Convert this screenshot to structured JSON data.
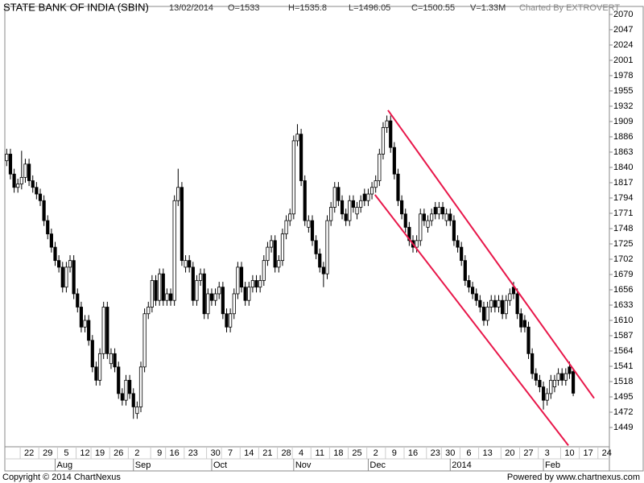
{
  "header": {
    "title": "STATE BANK OF INDIA (SBIN)",
    "date": "13/02/2014",
    "open": "O=1533",
    "high": "H=1535.8",
    "low": "L=1496.05",
    "close": "C=1500.55",
    "volume": "V=1.33M",
    "credit": "Charted By EXTROVERT"
  },
  "footer": {
    "copyright": "Copyright © 2014 ChartNexus",
    "powered": "Powered by www.chartnexus.com"
  },
  "chart_data": {
    "type": "candlestick",
    "x": [
      0,
      1,
      2,
      3,
      4,
      5,
      6,
      7,
      8,
      9,
      10,
      11,
      12,
      13,
      14,
      15,
      16,
      17,
      18,
      19,
      20,
      21,
      22,
      23,
      24,
      25,
      26,
      27,
      28,
      29,
      30,
      31,
      32,
      33,
      34,
      35,
      36,
      37,
      38,
      39,
      40,
      41,
      42,
      43,
      44,
      45,
      46,
      47,
      48,
      49,
      50,
      51,
      52,
      53,
      54,
      55,
      56,
      57,
      58,
      59,
      60,
      61,
      62,
      63,
      64,
      65,
      66,
      67,
      68,
      69,
      70,
      71,
      72,
      73,
      74,
      75,
      76,
      77,
      78,
      79,
      80,
      81,
      82,
      83,
      84,
      85,
      86,
      87,
      88,
      89,
      90,
      91,
      92,
      93,
      94,
      95,
      96,
      97,
      98,
      99,
      100,
      101,
      102,
      103,
      104,
      105,
      106,
      107,
      108,
      109,
      110,
      111,
      112,
      113,
      114,
      115,
      116,
      117,
      118,
      119,
      120,
      121,
      122,
      123,
      124,
      125,
      126,
      127,
      128,
      129,
      130,
      131,
      132,
      133,
      134,
      135,
      136,
      137,
      138,
      139,
      140,
      141,
      142,
      143,
      144,
      145,
      146,
      147,
      148,
      149,
      150,
      151,
      152
    ],
    "open": [
      1850,
      1860,
      1830,
      1810,
      1815,
      1825,
      1845,
      1820,
      1810,
      1800,
      1790,
      1760,
      1740,
      1720,
      1700,
      1690,
      1660,
      1690,
      1700,
      1650,
      1630,
      1600,
      1610,
      1580,
      1540,
      1520,
      1560,
      1630,
      1545,
      1560,
      1540,
      1500,
      1490,
      1520,
      1500,
      1470,
      1480,
      1540,
      1620,
      1630,
      1670,
      1640,
      1680,
      1640,
      1650,
      1640,
      1790,
      1810,
      1690,
      1700,
      1690,
      1640,
      1670,
      1680,
      1620,
      1650,
      1640,
      1650,
      1660,
      1620,
      1600,
      1620,
      1650,
      1690,
      1660,
      1640,
      1660,
      1670,
      1660,
      1670,
      1700,
      1720,
      1730,
      1690,
      1700,
      1740,
      1760,
      1770,
      1880,
      1890,
      1820,
      1750,
      1760,
      1730,
      1710,
      1690,
      1680,
      1760,
      1780,
      1810,
      1790,
      1770,
      1760,
      1790,
      1770,
      1780,
      1800,
      1790,
      1800,
      1810,
      1820,
      1860,
      1900,
      1910,
      1870,
      1830,
      1790,
      1770,
      1750,
      1730,
      1720,
      1730,
      1770,
      1750,
      1760,
      1780,
      1770,
      1780,
      1760,
      1770,
      1760,
      1730,
      1720,
      1700,
      1670,
      1660,
      1650,
      1640,
      1630,
      1610,
      1630,
      1640,
      1630,
      1640,
      1620,
      1640,
      1660,
      1650,
      1620,
      1610,
      1600,
      1560,
      1530,
      1520,
      1510,
      1490,
      1500,
      1510,
      1520,
      1530,
      1520,
      1540,
      1533
    ],
    "high": [
      1868,
      1868,
      1838,
      1823,
      1865,
      1853,
      1853,
      1828,
      1818,
      1808,
      1798,
      1768,
      1748,
      1728,
      1708,
      1698,
      1698,
      1708,
      1708,
      1658,
      1638,
      1618,
      1618,
      1588,
      1548,
      1568,
      1638,
      1638,
      1568,
      1568,
      1548,
      1508,
      1528,
      1528,
      1508,
      1488,
      1548,
      1628,
      1638,
      1678,
      1678,
      1688,
      1688,
      1658,
      1658,
      1798,
      1838,
      1818,
      1708,
      1708,
      1698,
      1678,
      1688,
      1688,
      1658,
      1658,
      1658,
      1668,
      1668,
      1628,
      1628,
      1658,
      1698,
      1698,
      1668,
      1668,
      1678,
      1678,
      1678,
      1708,
      1728,
      1738,
      1738,
      1708,
      1748,
      1768,
      1778,
      1888,
      1905,
      1898,
      1828,
      1768,
      1768,
      1738,
      1718,
      1698,
      1768,
      1788,
      1818,
      1818,
      1798,
      1778,
      1798,
      1798,
      1788,
      1798,
      1808,
      1808,
      1818,
      1828,
      1868,
      1908,
      1918,
      1918,
      1878,
      1838,
      1798,
      1778,
      1758,
      1738,
      1738,
      1778,
      1778,
      1768,
      1778,
      1788,
      1788,
      1788,
      1778,
      1778,
      1768,
      1738,
      1728,
      1708,
      1678,
      1668,
      1658,
      1648,
      1638,
      1638,
      1648,
      1648,
      1648,
      1648,
      1648,
      1658,
      1668,
      1658,
      1628,
      1618,
      1608,
      1568,
      1538,
      1528,
      1518,
      1508,
      1528,
      1528,
      1538,
      1538,
      1538,
      1548,
      1535.8
    ],
    "low": [
      1842,
      1822,
      1802,
      1802,
      1807,
      1817,
      1812,
      1802,
      1792,
      1782,
      1752,
      1732,
      1712,
      1692,
      1682,
      1652,
      1652,
      1682,
      1642,
      1622,
      1592,
      1592,
      1572,
      1532,
      1512,
      1512,
      1552,
      1552,
      1537,
      1532,
      1492,
      1482,
      1482,
      1492,
      1462,
      1462,
      1472,
      1532,
      1612,
      1622,
      1632,
      1632,
      1632,
      1632,
      1632,
      1632,
      1782,
      1692,
      1682,
      1682,
      1632,
      1632,
      1662,
      1612,
      1612,
      1632,
      1632,
      1642,
      1612,
      1592,
      1592,
      1612,
      1642,
      1652,
      1632,
      1632,
      1652,
      1652,
      1652,
      1662,
      1692,
      1712,
      1682,
      1682,
      1692,
      1732,
      1752,
      1762,
      1872,
      1812,
      1752,
      1742,
      1722,
      1702,
      1682,
      1660,
      1672,
      1752,
      1772,
      1782,
      1762,
      1752,
      1752,
      1772,
      1762,
      1772,
      1782,
      1782,
      1792,
      1802,
      1812,
      1852,
      1892,
      1862,
      1822,
      1782,
      1762,
      1742,
      1722,
      1712,
      1712,
      1722,
      1752,
      1742,
      1752,
      1762,
      1762,
      1762,
      1752,
      1752,
      1722,
      1712,
      1692,
      1662,
      1652,
      1642,
      1632,
      1622,
      1602,
      1602,
      1622,
      1622,
      1622,
      1612,
      1612,
      1632,
      1642,
      1612,
      1592,
      1592,
      1552,
      1522,
      1512,
      1502,
      1476,
      1482,
      1492,
      1502,
      1512,
      1512,
      1512,
      1522,
      1496.05
    ],
    "close": [
      1860,
      1830,
      1810,
      1815,
      1825,
      1845,
      1820,
      1810,
      1800,
      1790,
      1760,
      1740,
      1720,
      1700,
      1690,
      1660,
      1690,
      1700,
      1650,
      1630,
      1600,
      1610,
      1580,
      1540,
      1520,
      1560,
      1630,
      1560,
      1560,
      1540,
      1500,
      1490,
      1520,
      1500,
      1480,
      1480,
      1540,
      1620,
      1630,
      1670,
      1640,
      1680,
      1640,
      1650,
      1640,
      1790,
      1810,
      1700,
      1700,
      1690,
      1640,
      1670,
      1680,
      1620,
      1650,
      1640,
      1650,
      1660,
      1620,
      1600,
      1620,
      1650,
      1690,
      1660,
      1640,
      1660,
      1670,
      1660,
      1670,
      1700,
      1720,
      1730,
      1690,
      1700,
      1740,
      1760,
      1770,
      1880,
      1890,
      1820,
      1760,
      1760,
      1730,
      1710,
      1690,
      1680,
      1760,
      1780,
      1810,
      1790,
      1770,
      1760,
      1790,
      1780,
      1780,
      1790,
      1790,
      1800,
      1810,
      1820,
      1860,
      1900,
      1910,
      1870,
      1830,
      1790,
      1770,
      1750,
      1730,
      1720,
      1730,
      1770,
      1760,
      1760,
      1770,
      1770,
      1780,
      1770,
      1770,
      1760,
      1730,
      1720,
      1700,
      1670,
      1660,
      1650,
      1640,
      1630,
      1610,
      1630,
      1640,
      1630,
      1640,
      1620,
      1640,
      1650,
      1650,
      1620,
      1600,
      1600,
      1560,
      1530,
      1520,
      1510,
      1490,
      1500,
      1520,
      1520,
      1530,
      1520,
      1530,
      1530,
      1500.55
    ],
    "up_color": "#ffffff",
    "down_color": "#000000",
    "wick_color": "#000000",
    "xlim": [
      -0.5,
      161.7
    ],
    "ylim": [
      1420,
      2082
    ],
    "xticks": [
      {
        "value": 6,
        "label": "22"
      },
      {
        "value": 11,
        "label": "29"
      },
      {
        "value": 16,
        "label": "5"
      },
      {
        "value": 21,
        "label": "12"
      },
      {
        "value": 25,
        "label": "19"
      },
      {
        "value": 30,
        "label": "26"
      },
      {
        "value": 35,
        "label": "2"
      },
      {
        "value": 41,
        "label": "9"
      },
      {
        "value": 45,
        "label": "16"
      },
      {
        "value": 50,
        "label": "23"
      },
      {
        "value": 56,
        "label": "30"
      },
      {
        "value": 60,
        "label": "7"
      },
      {
        "value": 65,
        "label": "14"
      },
      {
        "value": 70,
        "label": "21"
      },
      {
        "value": 75,
        "label": "28"
      },
      {
        "value": 79,
        "label": "4"
      },
      {
        "value": 84,
        "label": "11"
      },
      {
        "value": 89,
        "label": "18"
      },
      {
        "value": 94,
        "label": "25"
      },
      {
        "value": 99,
        "label": "2"
      },
      {
        "value": 104,
        "label": "9"
      },
      {
        "value": 109,
        "label": "16"
      },
      {
        "value": 115,
        "label": "23"
      },
      {
        "value": 119,
        "label": "30"
      },
      {
        "value": 124,
        "label": "6"
      },
      {
        "value": 129,
        "label": "13"
      },
      {
        "value": 135,
        "label": "20"
      },
      {
        "value": 140,
        "label": "27"
      },
      {
        "value": 145,
        "label": "3"
      },
      {
        "value": 151,
        "label": "10"
      },
      {
        "value": 156,
        "label": "17"
      },
      {
        "value": 161,
        "label": "24"
      }
    ],
    "months": [
      {
        "value": 13,
        "label": "Aug"
      },
      {
        "value": 34,
        "label": "Sep"
      },
      {
        "value": 55,
        "label": "Oct"
      },
      {
        "value": 77,
        "label": "Nov"
      },
      {
        "value": 97,
        "label": "Dec"
      },
      {
        "value": 119,
        "label": "2014"
      },
      {
        "value": 144,
        "label": "Feb"
      }
    ],
    "yticks": [
      1449,
      1472,
      1495,
      1518,
      1541,
      1564,
      1587,
      1610,
      1633,
      1656,
      1679,
      1702,
      1725,
      1748,
      1771,
      1794,
      1817,
      1840,
      1863,
      1886,
      1909,
      1932,
      1955,
      1978,
      2001,
      2024,
      2047,
      2070
    ],
    "trendlines": [
      {
        "x": [
          102.3,
          157.6
        ],
        "y": [
          1926,
          1493
        ],
        "color": "#e8174a"
      },
      {
        "x": [
          98.8,
          150.7
        ],
        "y": [
          1799,
          1422
        ],
        "color": "#e8174a"
      }
    ]
  }
}
